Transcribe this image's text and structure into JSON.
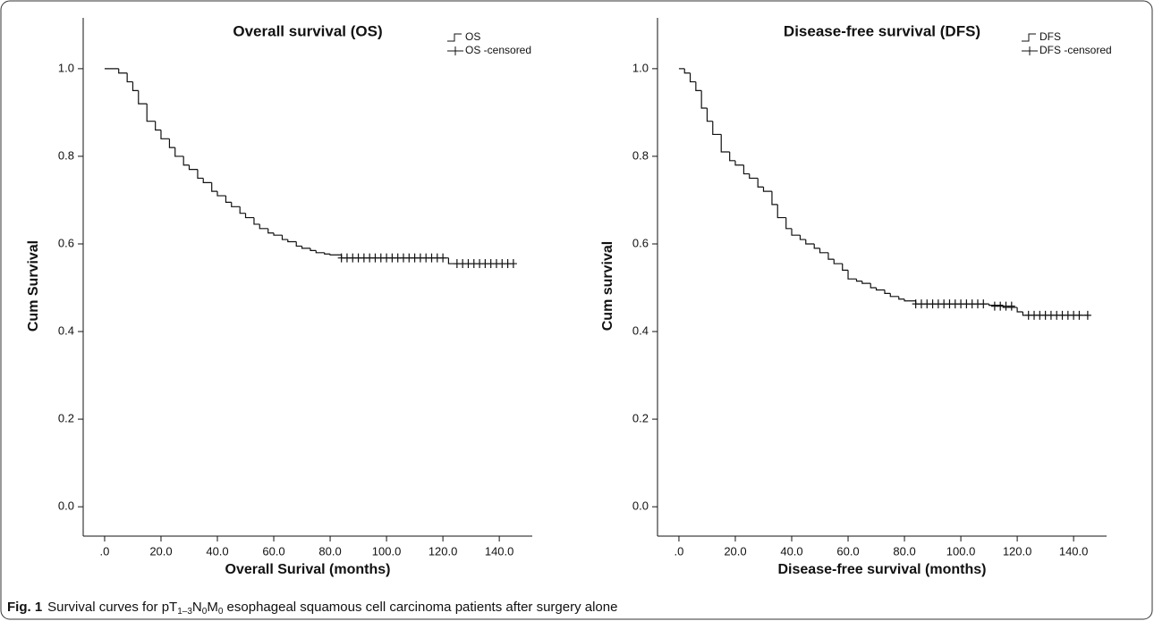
{
  "chart_data": [
    {
      "type": "line",
      "title": "Overall survival (OS)",
      "xlabel": "Overall Surival (months)",
      "ylabel": "Cum Survival",
      "xlim": [
        -7.6,
        151.7
      ],
      "ylim": [
        -0.067,
        1.116
      ],
      "xticks": [
        {
          "value": 0,
          "label": ".0"
        },
        {
          "value": 20,
          "label": "20.0"
        },
        {
          "value": 40,
          "label": "40.0"
        },
        {
          "value": 60,
          "label": "60.0"
        },
        {
          "value": 80,
          "label": "80.0"
        },
        {
          "value": 100,
          "label": "100.0"
        },
        {
          "value": 120,
          "label": "120.0"
        },
        {
          "value": 140,
          "label": "140.0"
        }
      ],
      "yticks": [
        {
          "value": 0,
          "label": "0.0"
        },
        0.2,
        0.4,
        0.6,
        0.8,
        {
          "value": 1,
          "label": "1.0"
        }
      ],
      "legend": "upper right",
      "series": [
        {
          "name": "OS",
          "color": "#111111",
          "drawstyle": "steps",
          "x": [
            0,
            5,
            8,
            10,
            12,
            15,
            18,
            20,
            23,
            25,
            28,
            30,
            33,
            35,
            38,
            40,
            43,
            45,
            48,
            50,
            53,
            55,
            58,
            60,
            63,
            65,
            68,
            70,
            73,
            75,
            78,
            80,
            84,
            122,
            145
          ],
          "values": [
            1.0,
            0.99,
            0.97,
            0.95,
            0.92,
            0.88,
            0.86,
            0.84,
            0.82,
            0.8,
            0.78,
            0.77,
            0.75,
            0.74,
            0.72,
            0.71,
            0.695,
            0.685,
            0.67,
            0.66,
            0.645,
            0.635,
            0.625,
            0.62,
            0.61,
            0.605,
            0.595,
            0.59,
            0.585,
            0.58,
            0.577,
            0.575,
            0.568,
            0.555,
            0.555
          ]
        },
        {
          "name": "OS -censored",
          "color": "#111111",
          "marker": "+",
          "x": [
            84,
            86,
            88,
            90,
            92,
            94,
            96,
            98,
            100,
            102,
            104,
            106,
            108,
            110,
            112,
            114,
            116,
            118,
            120,
            125,
            127,
            129,
            131,
            133,
            135,
            137,
            139,
            141,
            143,
            145
          ],
          "values": [
            0.568,
            0.568,
            0.568,
            0.568,
            0.568,
            0.568,
            0.568,
            0.568,
            0.568,
            0.568,
            0.568,
            0.568,
            0.568,
            0.568,
            0.568,
            0.568,
            0.568,
            0.568,
            0.568,
            0.555,
            0.555,
            0.555,
            0.555,
            0.555,
            0.555,
            0.555,
            0.555,
            0.555,
            0.555,
            0.555
          ]
        }
      ]
    },
    {
      "type": "line",
      "title": "Disease-free survival (DFS)",
      "xlabel": "Disease-free survival (months)",
      "ylabel": "Cum survival",
      "xlim": [
        -7.6,
        151.7
      ],
      "ylim": [
        -0.067,
        1.116
      ],
      "xticks": [
        {
          "value": 0,
          "label": ".0"
        },
        {
          "value": 20,
          "label": "20.0"
        },
        {
          "value": 40,
          "label": "40.0"
        },
        {
          "value": 60,
          "label": "60.0"
        },
        {
          "value": 80,
          "label": "80.0"
        },
        {
          "value": 100,
          "label": "100.0"
        },
        {
          "value": 120,
          "label": "120.0"
        },
        {
          "value": 140,
          "label": "140.0"
        }
      ],
      "yticks": [
        {
          "value": 0,
          "label": "0.0"
        },
        0.2,
        0.4,
        0.6,
        0.8,
        {
          "value": 1,
          "label": "1.0"
        }
      ],
      "legend": "upper right",
      "series": [
        {
          "name": "DFS",
          "color": "#111111",
          "drawstyle": "steps",
          "x": [
            0,
            2,
            4,
            6,
            8,
            10,
            12,
            15,
            18,
            20,
            23,
            25,
            28,
            30,
            33,
            35,
            38,
            40,
            43,
            45,
            48,
            50,
            53,
            55,
            58,
            60,
            63,
            65,
            68,
            70,
            73,
            75,
            78,
            80,
            84,
            110,
            115,
            120,
            122,
            145
          ],
          "values": [
            1.0,
            0.99,
            0.97,
            0.95,
            0.91,
            0.88,
            0.85,
            0.81,
            0.79,
            0.78,
            0.76,
            0.75,
            0.73,
            0.72,
            0.69,
            0.66,
            0.635,
            0.62,
            0.61,
            0.6,
            0.59,
            0.58,
            0.565,
            0.555,
            0.54,
            0.52,
            0.515,
            0.51,
            0.5,
            0.495,
            0.487,
            0.48,
            0.474,
            0.47,
            0.463,
            0.46,
            0.455,
            0.445,
            0.437,
            0.437
          ]
        },
        {
          "name": "DFS -censored",
          "color": "#111111",
          "marker": "+",
          "x": [
            84,
            86,
            88,
            90,
            92,
            94,
            96,
            98,
            100,
            102,
            104,
            106,
            108,
            112,
            114,
            116,
            118,
            124,
            126,
            128,
            130,
            132,
            134,
            136,
            138,
            140,
            142,
            145
          ],
          "values": [
            0.463,
            0.463,
            0.463,
            0.463,
            0.463,
            0.463,
            0.463,
            0.463,
            0.463,
            0.463,
            0.463,
            0.463,
            0.463,
            0.458,
            0.458,
            0.458,
            0.458,
            0.437,
            0.437,
            0.437,
            0.437,
            0.437,
            0.437,
            0.437,
            0.437,
            0.437,
            0.437,
            0.437
          ]
        }
      ]
    }
  ],
  "caption": {
    "label": "Fig. 1",
    "text": [
      "Survival curves for pT",
      "1–3",
      "N",
      "0",
      "M",
      "0",
      " esophageal squamous cell carcinoma patients after surgery alone"
    ]
  }
}
